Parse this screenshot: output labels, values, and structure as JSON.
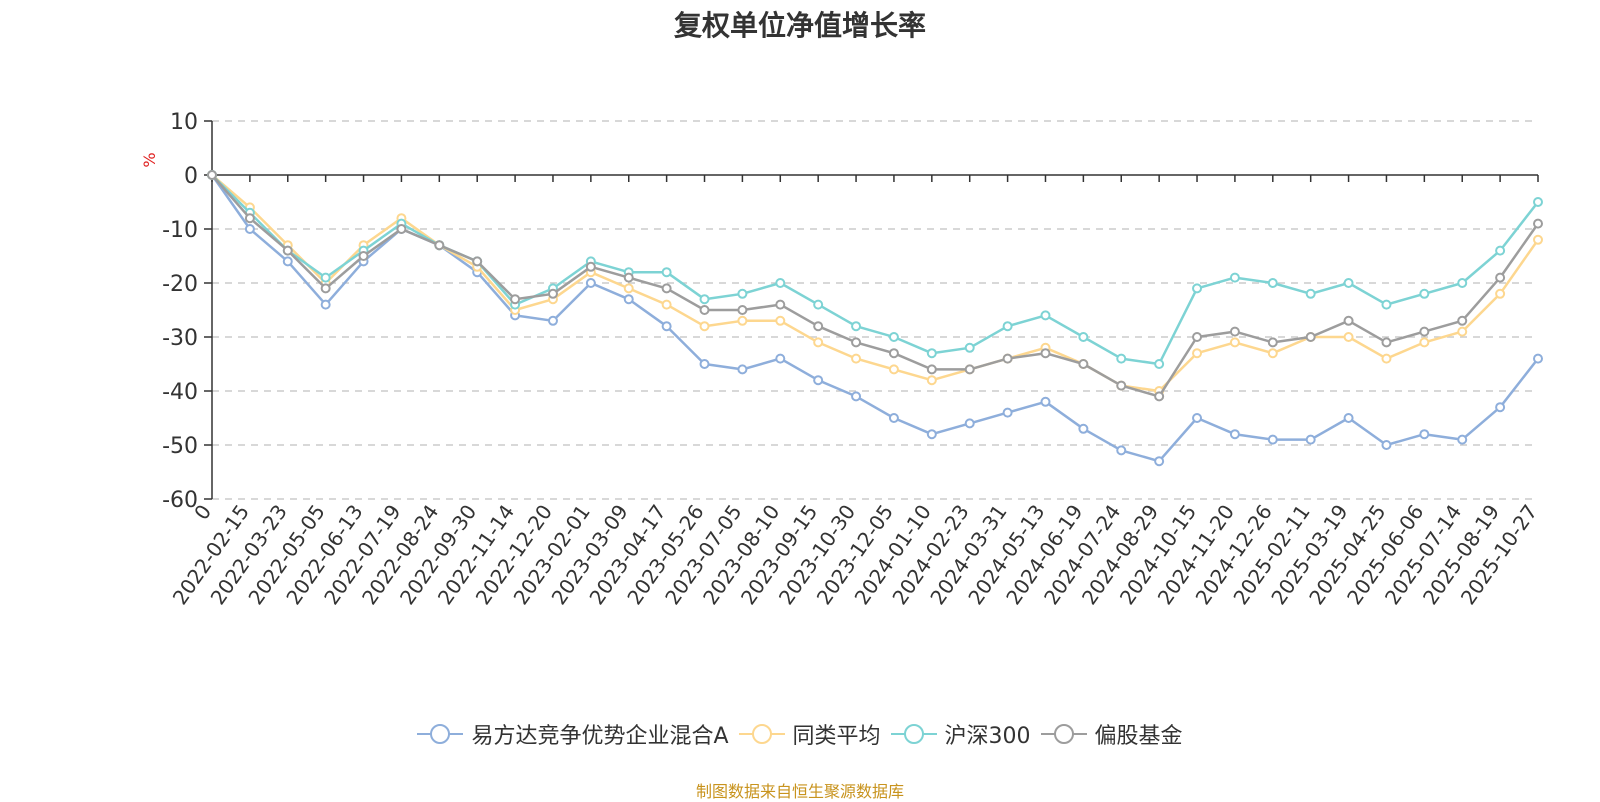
{
  "chart_data": {
    "type": "line",
    "title": "复权单位净值增长率",
    "ylabel": "%",
    "ylim": [
      -60,
      10
    ],
    "yticks": [
      10,
      0,
      -10,
      -20,
      -30,
      -40,
      -50,
      -60
    ],
    "grid": true,
    "legend_position": "bottom",
    "x_labels": [
      "0",
      "2022-02-15",
      "2022-03-23",
      "2022-05-05",
      "2022-06-13",
      "2022-07-19",
      "2022-08-24",
      "2022-09-30",
      "2022-11-14",
      "2022-12-20",
      "2023-02-01",
      "2023-03-09",
      "2023-04-17",
      "2023-05-26",
      "2023-07-05",
      "2023-08-10",
      "2023-09-15",
      "2023-10-30",
      "2023-12-05",
      "2024-01-10",
      "2024-02-23",
      "2024-03-31",
      "2024-05-13",
      "2024-06-19",
      "2024-07-24",
      "2024-08-29",
      "2024-10-15",
      "2024-11-20",
      "2024-12-26",
      "2025-02-11",
      "2025-03-19",
      "2025-04-25",
      "2025-06-06",
      "2025-07-14",
      "2025-08-19",
      "2025-10-27"
    ],
    "series": [
      {
        "name": "易方达竞争优势企业混合A",
        "color": "#8eaedb",
        "values": [
          0,
          -10,
          -16,
          -24,
          -16,
          -10,
          -13,
          -18,
          -26,
          -27,
          -20,
          -23,
          -28,
          -35,
          -36,
          -34,
          -38,
          -41,
          -45,
          -48,
          -46,
          -44,
          -42,
          -47,
          -51,
          -53,
          -45,
          -48,
          -49,
          -49,
          -45,
          -50,
          -48,
          -49,
          -43,
          -34
        ]
      },
      {
        "name": "同类平均",
        "color": "#fdd78f",
        "values": [
          0,
          -6,
          -13,
          -20,
          -13,
          -8,
          -13,
          -17,
          -25,
          -23,
          -18,
          -21,
          -24,
          -28,
          -27,
          -27,
          -31,
          -34,
          -36,
          -38,
          -36,
          -34,
          -32,
          -35,
          -39,
          -40,
          -33,
          -31,
          -33,
          -30,
          -30,
          -34,
          -31,
          -29,
          -22,
          -12
        ]
      },
      {
        "name": "沪深300",
        "color": "#7dd3d4",
        "values": [
          0,
          -7,
          -14,
          -19,
          -14,
          -9,
          -13,
          -16,
          -24,
          -21,
          -16,
          -18,
          -18,
          -23,
          -22,
          -20,
          -24,
          -28,
          -30,
          -33,
          -32,
          -28,
          -26,
          -30,
          -34,
          -35,
          -21,
          -19,
          -20,
          -22,
          -20,
          -24,
          -22,
          -20,
          -14,
          -5
        ]
      },
      {
        "name": "偏股基金",
        "color": "#9d9d9d",
        "values": [
          0,
          -8,
          -14,
          -21,
          -15,
          -10,
          -13,
          -16,
          -23,
          -22,
          -17,
          -19,
          -21,
          -25,
          -25,
          -24,
          -28,
          -31,
          -33,
          -36,
          -36,
          -34,
          -33,
          -35,
          -39,
          -41,
          -30,
          -29,
          -31,
          -30,
          -27,
          -31,
          -29,
          -27,
          -19,
          -9
        ]
      }
    ]
  },
  "source_text": "制图数据来自恒生聚源数据库"
}
